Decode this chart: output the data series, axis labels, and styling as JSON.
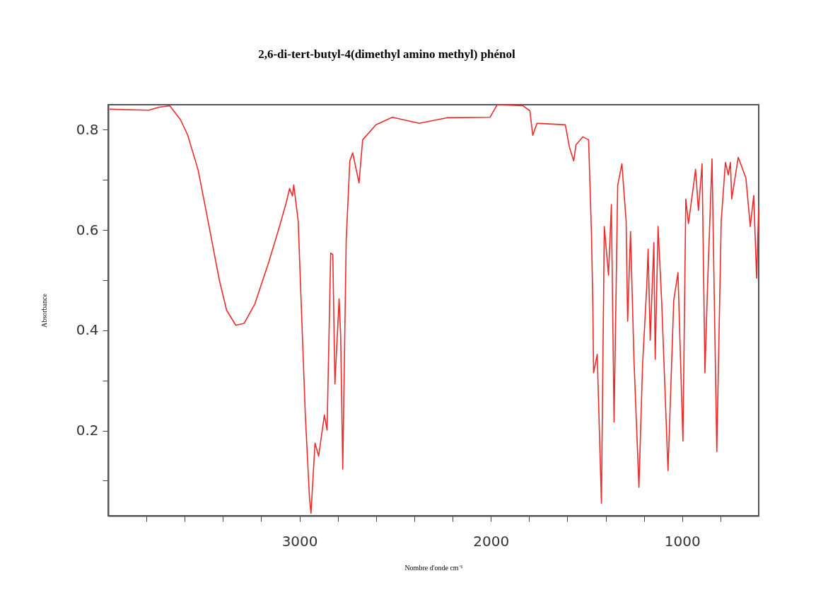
{
  "chart_data": {
    "type": "line",
    "title": "2,6-di-tert-butyl-4(dimethyl amino methyl) phénol",
    "xlabel": "Nombre d'onde cm⁻¹",
    "ylabel": "Absorbance",
    "x": [
      3993,
      3789,
      3733,
      3678,
      3622,
      3585,
      3530,
      3474,
      3419,
      3381,
      3333,
      3289,
      3233,
      3159,
      3104,
      3067,
      3052,
      3037,
      3030,
      3007,
      2970,
      2948,
      2940,
      2919,
      2900,
      2870,
      2856,
      2837,
      2826,
      2815,
      2793,
      2785,
      2774,
      2756,
      2737,
      2722,
      2689,
      2670,
      2600,
      2515,
      2374,
      2230,
      2004,
      1967,
      1833,
      1796,
      1781,
      1759,
      1611,
      1589,
      1567,
      1555,
      1519,
      1489,
      1474,
      1467,
      1463,
      1444,
      1422,
      1407,
      1385,
      1370,
      1356,
      1337,
      1315,
      1293,
      1285,
      1270,
      1252,
      1226,
      1207,
      1185,
      1178,
      1167,
      1148,
      1141,
      1126,
      1107,
      1074,
      1044,
      1022,
      996,
      981,
      967,
      930,
      915,
      896,
      881,
      867,
      844,
      819,
      796,
      774,
      759,
      748,
      741,
      707,
      667,
      644,
      626,
      611,
      600
    ],
    "series": [
      {
        "color": "#ee2b2b",
        "values": [
          0.841,
          0.839,
          0.845,
          0.848,
          0.82,
          0.79,
          0.72,
          0.61,
          0.5,
          0.44,
          0.41,
          0.414,
          0.453,
          0.538,
          0.608,
          0.658,
          0.683,
          0.668,
          0.69,
          0.618,
          0.234,
          0.066,
          0.035,
          0.175,
          0.149,
          0.231,
          0.201,
          0.554,
          0.551,
          0.293,
          0.463,
          0.39,
          0.123,
          0.58,
          0.738,
          0.754,
          0.694,
          0.78,
          0.81,
          0.825,
          0.813,
          0.824,
          0.825,
          0.85,
          0.848,
          0.838,
          0.789,
          0.813,
          0.81,
          0.765,
          0.738,
          0.77,
          0.786,
          0.78,
          0.592,
          0.451,
          0.315,
          0.352,
          0.055,
          0.607,
          0.51,
          0.651,
          0.217,
          0.689,
          0.732,
          0.618,
          0.418,
          0.597,
          0.342,
          0.087,
          0.331,
          0.489,
          0.562,
          0.38,
          0.575,
          0.342,
          0.607,
          0.456,
          0.12,
          0.46,
          0.515,
          0.179,
          0.662,
          0.613,
          0.721,
          0.639,
          0.732,
          0.315,
          0.493,
          0.742,
          0.158,
          0.618,
          0.735,
          0.71,
          0.735,
          0.662,
          0.745,
          0.704,
          0.607,
          0.669,
          0.504,
          0.645
        ]
      }
    ],
    "xlim": [
      4000,
      600
    ],
    "xticks": [
      {
        "value": 3800,
        "label": null
      },
      {
        "value": 3600,
        "label": null
      },
      {
        "value": 3400,
        "label": null
      },
      {
        "value": 3200,
        "label": null
      },
      3000,
      {
        "value": 2800,
        "label": null
      },
      {
        "value": 2600,
        "label": null
      },
      {
        "value": 2400,
        "label": null
      },
      {
        "value": 2200,
        "label": null
      },
      2000,
      {
        "value": 1800,
        "label": null
      },
      {
        "value": 1600,
        "label": null
      },
      {
        "value": 1400,
        "label": null
      },
      {
        "value": 1200,
        "label": null
      },
      1000,
      {
        "value": 800,
        "label": null
      }
    ],
    "ylim": [
      0.03,
      0.85
    ],
    "yticks": [
      {
        "value": 0.1,
        "label": null
      },
      0.2,
      {
        "value": 0.3,
        "label": null
      },
      0.4,
      {
        "value": 0.5,
        "label": null
      },
      0.6,
      {
        "value": 0.7,
        "label": null
      },
      0.8
    ],
    "grid": false
  }
}
